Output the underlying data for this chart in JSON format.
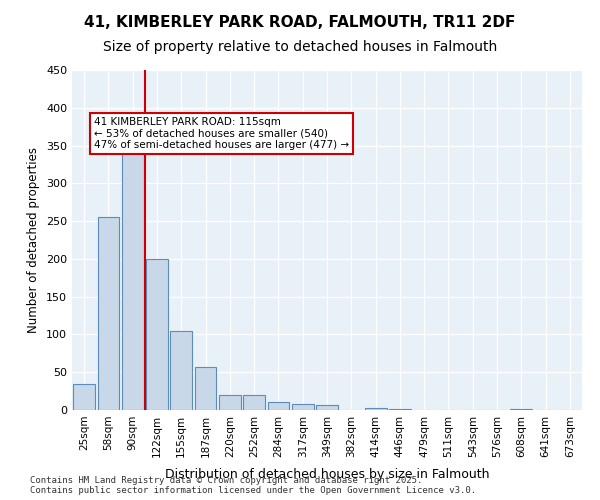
{
  "title_line1": "41, KIMBERLEY PARK ROAD, FALMOUTH, TR11 2DF",
  "title_line2": "Size of property relative to detached houses in Falmouth",
  "xlabel": "Distribution of detached houses by size in Falmouth",
  "ylabel": "Number of detached properties",
  "categories": [
    "25sqm",
    "58sqm",
    "90sqm",
    "122sqm",
    "155sqm",
    "187sqm",
    "220sqm",
    "252sqm",
    "284sqm",
    "317sqm",
    "349sqm",
    "382sqm",
    "414sqm",
    "446sqm",
    "479sqm",
    "511sqm",
    "543sqm",
    "576sqm",
    "608sqm",
    "641sqm",
    "673sqm"
  ],
  "values": [
    35,
    255,
    340,
    200,
    105,
    57,
    20,
    20,
    10,
    8,
    6,
    0,
    3,
    1,
    0,
    0,
    0,
    0,
    1,
    0,
    0
  ],
  "bar_color": "#c8d8e8",
  "bar_edge_color": "#5b8db8",
  "background_color": "#e8f0f8",
  "grid_color": "#ffffff",
  "red_line_x": 2.5,
  "annotation_text": "41 KIMBERLEY PARK ROAD: 115sqm\n← 53% of detached houses are smaller (540)\n47% of semi-detached houses are larger (477) →",
  "annotation_box_color": "#ffffff",
  "annotation_box_edge": "#cc0000",
  "ylim": [
    0,
    450
  ],
  "yticks": [
    0,
    50,
    100,
    150,
    200,
    250,
    300,
    350,
    400,
    450
  ],
  "footer_text": "Contains HM Land Registry data © Crown copyright and database right 2025.\nContains public sector information licensed under the Open Government Licence v3.0.",
  "title_fontsize": 11,
  "subtitle_fontsize": 10
}
